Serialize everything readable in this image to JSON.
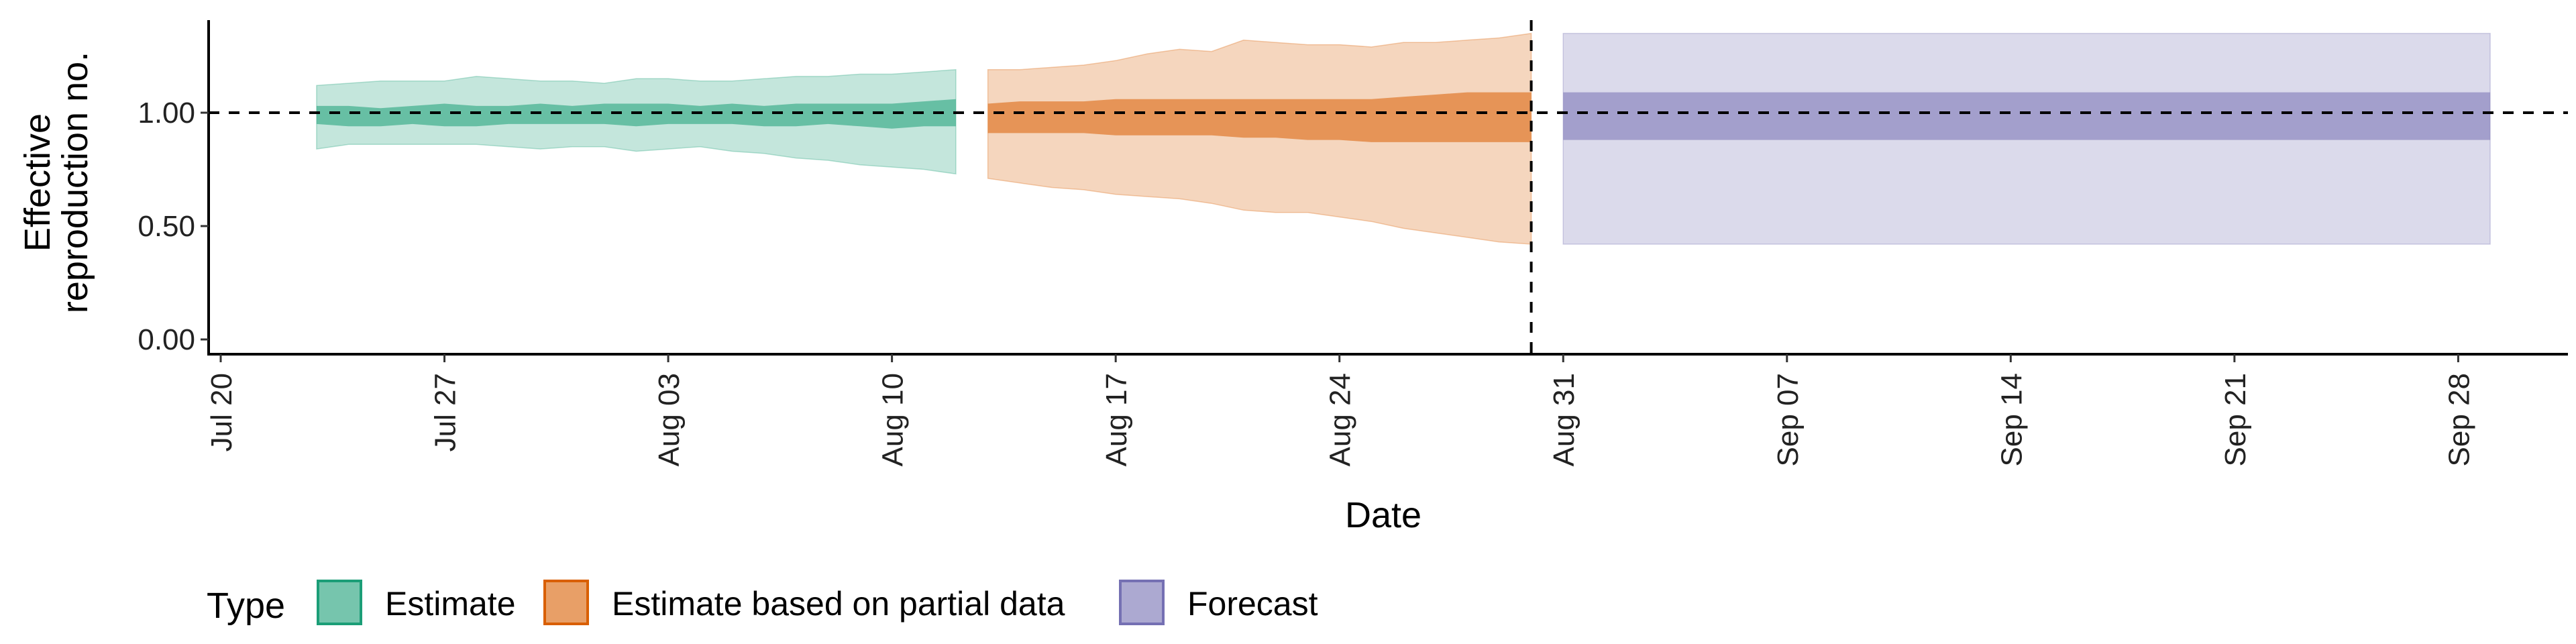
{
  "chart_data": {
    "type": "area",
    "xlabel": "Date",
    "ylabel_lines": [
      "Effective",
      "reproduction no."
    ],
    "x_range": [
      "2020-07-20",
      "2020-10-02"
    ],
    "ylim": [
      -0.05,
      1.4
    ],
    "y_ticks": [
      0.0,
      0.5,
      1.0
    ],
    "y_tick_labels": [
      "0.00",
      "0.50",
      "1.00"
    ],
    "x_ticks": [
      "2020-07-20",
      "2020-07-27",
      "2020-08-03",
      "2020-08-10",
      "2020-08-17",
      "2020-08-24",
      "2020-08-31",
      "2020-09-07",
      "2020-09-14",
      "2020-09-21",
      "2020-09-28"
    ],
    "x_tick_labels": [
      "Jul 20",
      "Jul 27",
      "Aug 03",
      "Aug 10",
      "Aug 17",
      "Aug 24",
      "Aug 31",
      "Sep 07",
      "Sep 14",
      "Sep 21",
      "Sep 28"
    ],
    "reference_line_y": 1.0,
    "reference_line_x": "2020-08-30",
    "grid": false,
    "legend": {
      "title": "Type",
      "placement": "bottom",
      "entries": [
        "Estimate",
        "Estimate based on partial data",
        "Forecast"
      ]
    },
    "series": [
      {
        "name": "Estimate",
        "color": "#1b9e77",
        "x": [
          "2020-07-23",
          "2020-07-24",
          "2020-07-25",
          "2020-07-26",
          "2020-07-27",
          "2020-07-28",
          "2020-07-29",
          "2020-07-30",
          "2020-07-31",
          "2020-08-01",
          "2020-08-02",
          "2020-08-03",
          "2020-08-04",
          "2020-08-05",
          "2020-08-06",
          "2020-08-07",
          "2020-08-08",
          "2020-08-09",
          "2020-08-10",
          "2020-08-11",
          "2020-08-12"
        ],
        "outer_lower": [
          0.84,
          0.86,
          0.86,
          0.86,
          0.86,
          0.86,
          0.85,
          0.84,
          0.85,
          0.85,
          0.83,
          0.84,
          0.85,
          0.83,
          0.82,
          0.8,
          0.79,
          0.77,
          0.76,
          0.75,
          0.73
        ],
        "outer_upper": [
          1.12,
          1.13,
          1.14,
          1.14,
          1.14,
          1.16,
          1.15,
          1.14,
          1.14,
          1.13,
          1.15,
          1.15,
          1.14,
          1.14,
          1.15,
          1.16,
          1.16,
          1.17,
          1.17,
          1.18,
          1.19
        ],
        "inner_lower": [
          0.95,
          0.94,
          0.94,
          0.95,
          0.94,
          0.94,
          0.95,
          0.95,
          0.95,
          0.95,
          0.94,
          0.95,
          0.95,
          0.95,
          0.94,
          0.94,
          0.95,
          0.94,
          0.93,
          0.94,
          0.94
        ],
        "inner_upper": [
          1.03,
          1.03,
          1.02,
          1.03,
          1.04,
          1.03,
          1.03,
          1.04,
          1.03,
          1.04,
          1.04,
          1.04,
          1.03,
          1.04,
          1.03,
          1.04,
          1.04,
          1.04,
          1.04,
          1.05,
          1.06
        ]
      },
      {
        "name": "Estimate based on partial data",
        "color": "#d95f02",
        "x": [
          "2020-08-13",
          "2020-08-14",
          "2020-08-15",
          "2020-08-16",
          "2020-08-17",
          "2020-08-18",
          "2020-08-19",
          "2020-08-20",
          "2020-08-21",
          "2020-08-22",
          "2020-08-23",
          "2020-08-24",
          "2020-08-25",
          "2020-08-26",
          "2020-08-27",
          "2020-08-28",
          "2020-08-29",
          "2020-08-30"
        ],
        "outer_lower": [
          0.71,
          0.69,
          0.67,
          0.66,
          0.64,
          0.63,
          0.62,
          0.6,
          0.57,
          0.56,
          0.56,
          0.54,
          0.52,
          0.49,
          0.47,
          0.45,
          0.43,
          0.42
        ],
        "outer_upper": [
          1.19,
          1.19,
          1.2,
          1.21,
          1.23,
          1.26,
          1.28,
          1.27,
          1.32,
          1.31,
          1.3,
          1.3,
          1.29,
          1.31,
          1.31,
          1.32,
          1.33,
          1.35
        ],
        "inner_lower": [
          0.91,
          0.91,
          0.91,
          0.91,
          0.9,
          0.9,
          0.9,
          0.9,
          0.89,
          0.89,
          0.88,
          0.88,
          0.87,
          0.87,
          0.87,
          0.87,
          0.87,
          0.87
        ],
        "inner_upper": [
          1.04,
          1.05,
          1.05,
          1.05,
          1.06,
          1.06,
          1.06,
          1.06,
          1.06,
          1.06,
          1.06,
          1.06,
          1.06,
          1.07,
          1.08,
          1.09,
          1.09,
          1.09
        ]
      },
      {
        "name": "Forecast",
        "color": "#7570b3",
        "x": [
          "2020-08-31",
          "2020-09-29"
        ],
        "outer_lower": [
          0.42,
          0.42
        ],
        "outer_upper": [
          1.35,
          1.35
        ],
        "inner_lower": [
          0.88,
          0.88
        ],
        "inner_upper": [
          1.09,
          1.09
        ]
      }
    ]
  }
}
